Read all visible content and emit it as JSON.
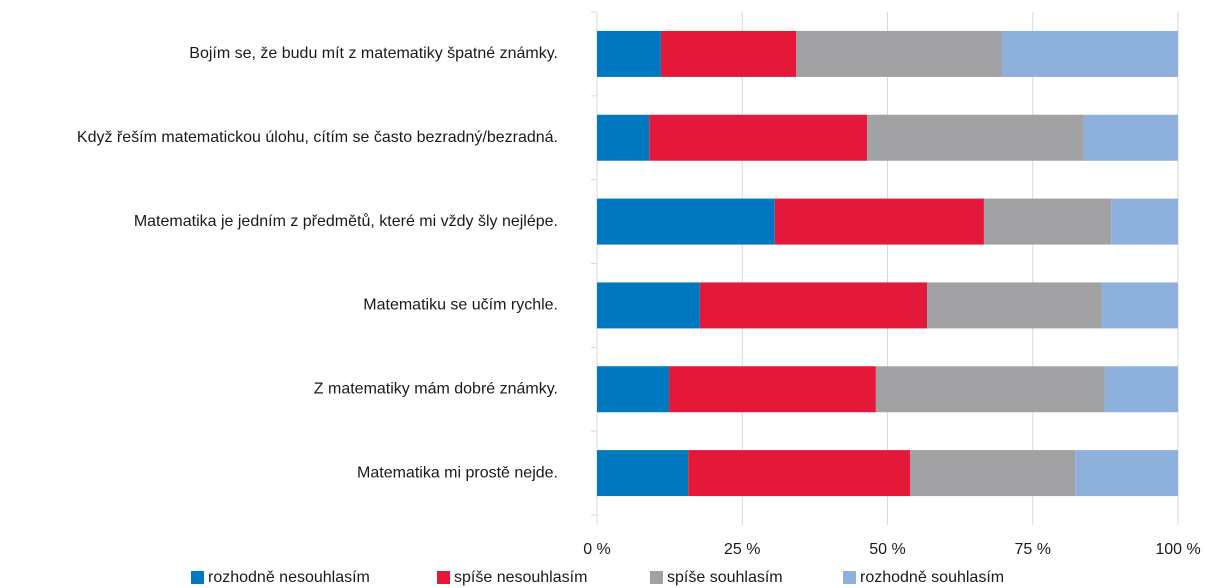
{
  "chart_data": {
    "type": "stacked_barh",
    "categories": [
      "Bojím se, že budu mít z matematiky špatné známky.",
      "Když řeším matematickou úlohu, cítím se často bezradný/bezradná.",
      "Matematika je jedním z předmětů, které mi vždy šly nejlépe.",
      "Matematiku se učím rychle.",
      "Z matematiky mám dobré známky.",
      "Matematika mi prostě nejde."
    ],
    "series": [
      {
        "name": "rozhodně nesouhlasím",
        "color": "#0079c1",
        "values": [
          11.0,
          9.0,
          30.6,
          17.7,
          12.4,
          15.7
        ]
      },
      {
        "name": "spíše nesouhlasím",
        "color": "#e4193a",
        "values": [
          23.3,
          37.5,
          36.0,
          39.1,
          35.6,
          38.2
        ]
      },
      {
        "name": "spíše souhlasím",
        "color": "#a1a1a4",
        "values": [
          35.4,
          37.3,
          21.9,
          30.1,
          39.4,
          28.4
        ]
      },
      {
        "name": "rozhodně souhlasím",
        "color": "#8db0dd",
        "values": [
          30.3,
          16.2,
          11.5,
          13.1,
          12.6,
          17.7
        ]
      }
    ],
    "xlim": [
      0,
      100
    ],
    "xticks": [
      {
        "value": 0,
        "label": "0 %"
      },
      {
        "value": 25,
        "label": "25 %"
      },
      {
        "value": 50,
        "label": "50 %"
      },
      {
        "value": 75,
        "label": "75 %"
      },
      {
        "value": 100,
        "label": "100 %"
      }
    ],
    "grid": true
  }
}
